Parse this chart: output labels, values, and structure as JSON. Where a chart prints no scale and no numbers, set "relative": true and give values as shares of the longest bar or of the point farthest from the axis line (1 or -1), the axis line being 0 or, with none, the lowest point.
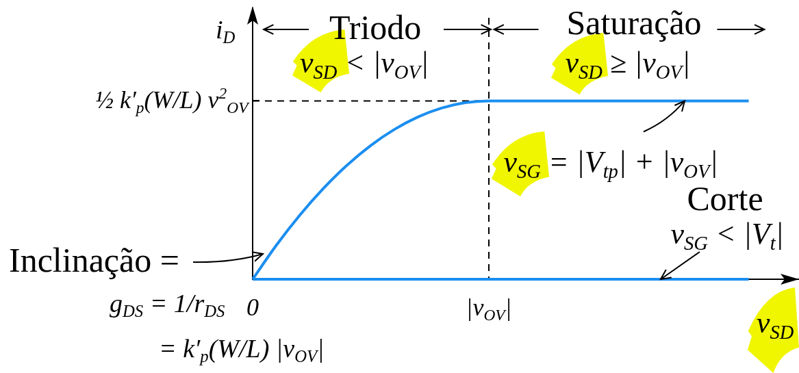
{
  "chart_data": {
    "type": "line",
    "relative": true,
    "xlabel": "v$_{SD}$",
    "ylabel": "i$_{D}$",
    "marker": "none",
    "categories": [
      "0",
      null,
      null,
      null,
      null,
      null,
      null,
      null,
      null,
      null,
      "|v$_{OV}$|",
      null,
      null,
      null,
      null,
      null,
      null,
      null,
      null,
      null,
      null,
      null
    ],
    "series": [
      {
        "color": "#1b8ef0",
        "values": [
          0,
          0.19,
          0.36,
          0.51,
          0.64,
          0.75,
          0.84,
          0.91,
          0.96,
          0.99,
          1,
          1,
          1,
          1,
          1,
          1,
          1,
          1,
          1,
          1,
          1,
          1
        ]
      },
      {
        "color": "#1b8ef0",
        "values": [
          0,
          0,
          0,
          0,
          0,
          0,
          0,
          0,
          0,
          0,
          0,
          0,
          0,
          0,
          0,
          0,
          0,
          0,
          0,
          0,
          0,
          0
        ]
      },
      {
        "color": "#000000",
        "values": [
          1,
          1,
          1,
          1,
          1,
          1,
          1,
          1,
          1,
          1,
          1,
          null,
          null,
          null,
          null,
          null,
          null,
          null,
          null,
          null,
          null,
          null
        ],
        "line_style": "dashed"
      }
    ],
    "ref_lines": [
      {
        "axis": "x",
        "value": "|v$_{OV}$|",
        "color": "#000000",
        "line_style": "dashed"
      }
    ],
    "annotations": [
      "Triodo",
      "v$_{SD}$ < |v$_{OV}$|",
      "Saturação",
      "v$_{SD}$ ≥ |v$_{OV}$|",
      "½ k′$_{p}$(W/L) v$^{2}$$_{OV}$",
      {
        "text": "v$_{SG}$ = |V$_{tp}$| + |v$_{OV}$|",
        "y": 1
      },
      "Corte",
      {
        "text": "v$_{SG}$ < |V$_{t}$|",
        "y": 0
      },
      "Inclinação =",
      "g$_{DS}$ = 1/r$_{DS}$",
      "= k′$_{p}$(W/L) |v$_{OV}$|"
    ]
  }
}
